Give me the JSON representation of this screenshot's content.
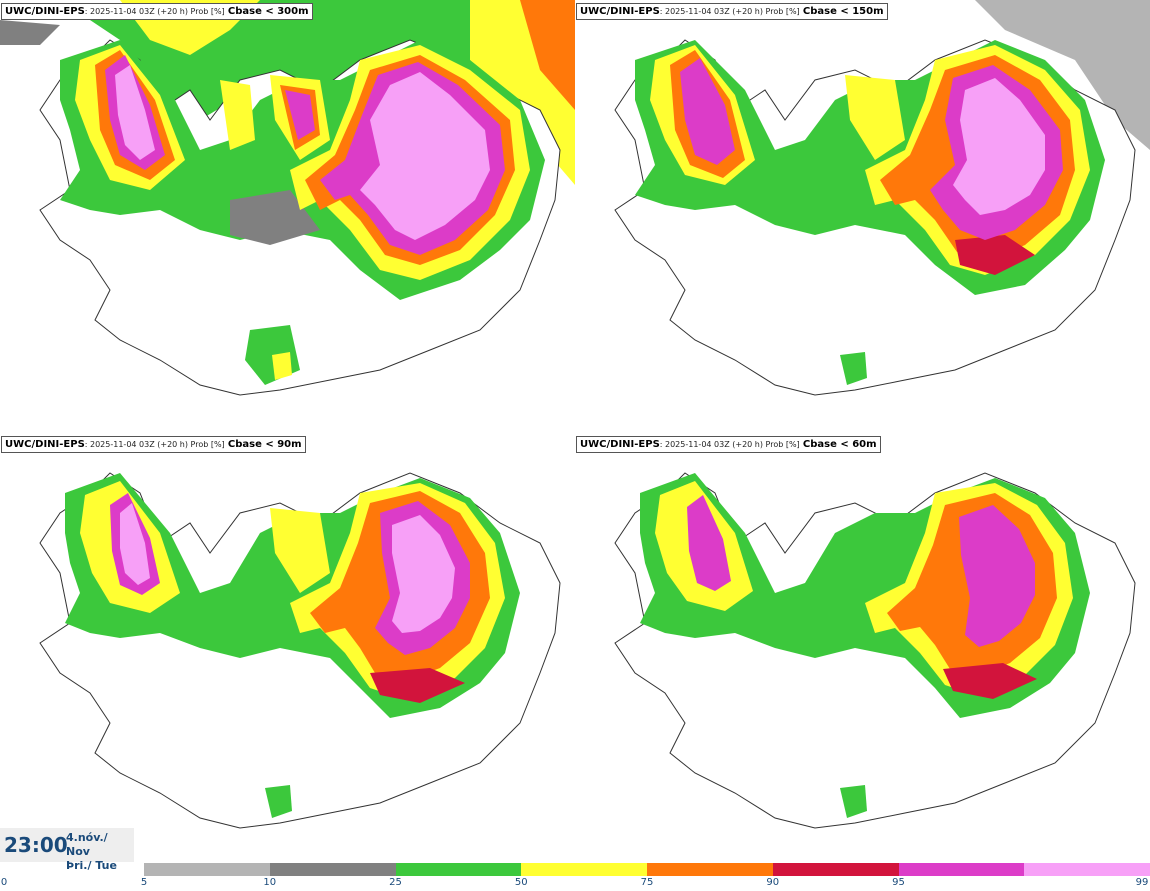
{
  "panels": [
    {
      "model": "UWC/DINI-EPS",
      "meta": ": 2025-11-04 03Z (+20 h) Prob [%]",
      "threshold": "Cbase < 300m"
    },
    {
      "model": "UWC/DINI-EPS",
      "meta": ": 2025-11-04 03Z (+20 h) Prob [%]",
      "threshold": "Cbase < 150m"
    },
    {
      "model": "UWC/DINI-EPS",
      "meta": ": 2025-11-04 03Z (+20 h) Prob [%]",
      "threshold": "Cbase < 90m"
    },
    {
      "model": "UWC/DINI-EPS",
      "meta": ": 2025-11-04 03Z (+20 h) Prob [%]",
      "threshold": "Cbase < 60m"
    }
  ],
  "valid_time": {
    "time": "23:00",
    "date_line1": "4.nóv./ Nov",
    "date_line2": "Þri./ Tue"
  },
  "legend": {
    "ticks": [
      "0",
      "5",
      "10",
      "25",
      "50",
      "75",
      "90",
      "95",
      "99"
    ],
    "colors": [
      "#b4b4b4",
      "#808080",
      "#3cc83c",
      "#ffff32",
      "#ff780a",
      "#d2143c",
      "#dc3cc8",
      "#f7a0f7"
    ]
  },
  "map": {
    "sea_color": "#ffffff",
    "coast_color": "#333333",
    "prob_colors": {
      "p5": "#b4b4b4",
      "p10": "#808080",
      "p25": "#3cc83c",
      "p50": "#ffff32",
      "p75": "#ff780a",
      "p90": "#d2143c",
      "p95": "#dc3cc8",
      "p99": "#f7a0f7"
    }
  }
}
